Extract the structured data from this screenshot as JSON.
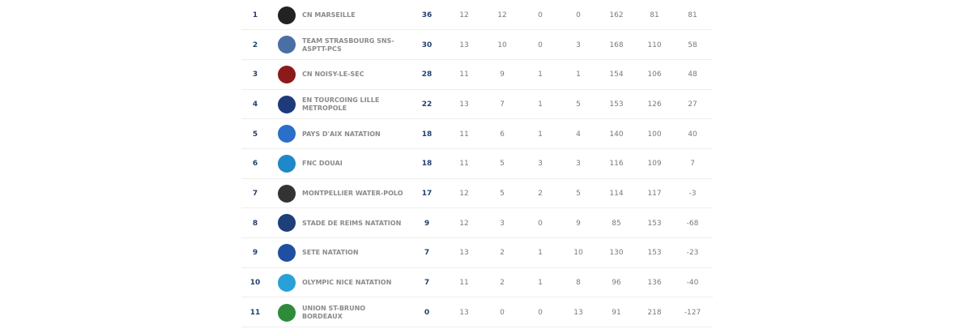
{
  "table": {
    "rows": [
      [
        1,
        "CN MARSEILLE",
        36,
        12,
        12,
        0,
        0,
        162,
        81,
        81
      ],
      [
        2,
        "TEAM STRASBOURG SNS-ASPTT-PCS",
        30,
        13,
        10,
        0,
        3,
        168,
        110,
        58
      ],
      [
        3,
        "CN NOISY-LE-SEC",
        28,
        11,
        9,
        1,
        1,
        154,
        106,
        48
      ],
      [
        4,
        "EN TOURCOING LILLE METROPOLE",
        22,
        13,
        7,
        1,
        5,
        153,
        126,
        27
      ],
      [
        5,
        "PAYS D'AIX NATATION",
        18,
        11,
        6,
        1,
        4,
        140,
        100,
        40
      ],
      [
        6,
        "FNC DOUAI",
        18,
        11,
        5,
        3,
        3,
        116,
        109,
        7
      ],
      [
        7,
        "MONTPELLIER WATER-POLO",
        17,
        12,
        5,
        2,
        5,
        114,
        117,
        -3
      ],
      [
        8,
        "STADE DE REIMS NATATION",
        9,
        12,
        3,
        0,
        9,
        85,
        153,
        -68
      ],
      [
        9,
        "SETE NATATION",
        7,
        13,
        2,
        1,
        10,
        130,
        153,
        -23
      ],
      [
        10,
        "OLYMPIC NICE NATATION",
        7,
        11,
        2,
        1,
        8,
        96,
        136,
        -40
      ],
      [
        11,
        "UNION ST-BRUNO BORDEAUX",
        0,
        13,
        0,
        0,
        13,
        91,
        218,
        -127
      ]
    ]
  }
}
